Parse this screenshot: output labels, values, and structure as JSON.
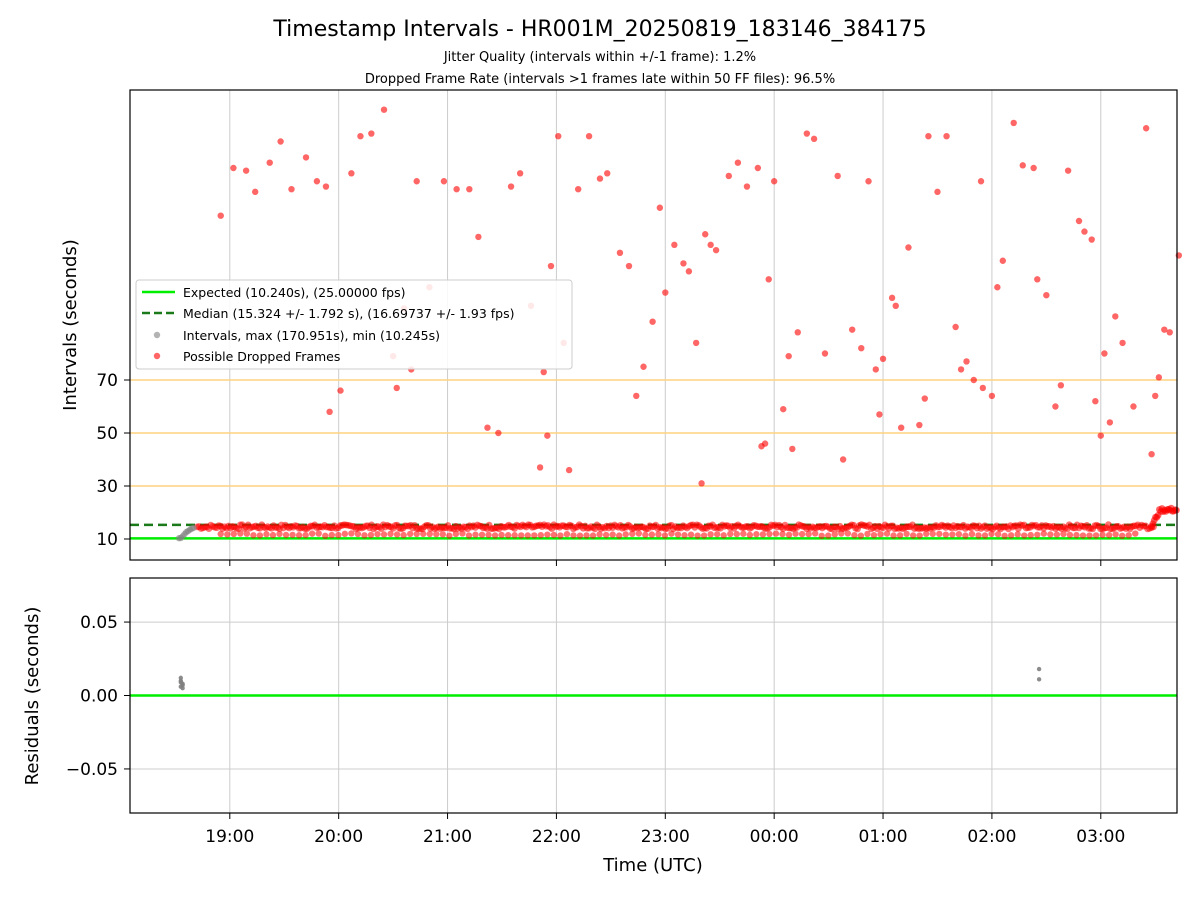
{
  "title": "Timestamp Intervals - HR001M_20250819_183146_384175",
  "subtitle1": "Jitter Quality (intervals within +/-1 frame): 1.2%",
  "subtitle2": "Dropped Frame Rate (intervals >1 frames late within 50 FF files): 96.5%",
  "colors": {
    "expected": "#00ee00",
    "median": "#1a7a1a",
    "intervals": "#808080",
    "dropped": "#ff0000",
    "threshold": "#ffd27f",
    "grid": "#cccccc"
  },
  "chart_data": [
    {
      "type": "scatter",
      "ylabel": "Intervals (seconds)",
      "xlim": [
        "18:05",
        "03:42"
      ],
      "y_ticks": [
        10,
        30,
        50,
        70
      ],
      "grid": true,
      "legend_position": "center-left",
      "expected_interval": 10.24,
      "median_interval": 15.324,
      "threshold_lines": [
        30,
        50,
        70
      ],
      "legend": [
        "Expected (10.240s), (25.00000 fps)",
        "Median (15.324 +/- 1.792 s), (16.69737 +/- 1.93 fps)",
        "Intervals, max (170.951s), min (10.245s)",
        "Possible Dropped Frames"
      ],
      "series": [
        {
          "name": "Intervals",
          "points": [
            [
              "18:32",
              10.3
            ],
            [
              "18:33",
              10.4
            ],
            [
              "18:34",
              11.0
            ],
            [
              "18:35",
              11.8
            ],
            [
              "18:36",
              12.6
            ],
            [
              "18:37",
              13.0
            ],
            [
              "18:38",
              13.5
            ],
            [
              "18:39",
              13.9
            ],
            [
              "18:40",
              14.2
            ]
          ]
        },
        {
          "name": "Possible Dropped Frames",
          "points": [
            [
              "18:55",
              132
            ],
            [
              "19:02",
              150
            ],
            [
              "19:09",
              149
            ],
            [
              "19:14",
              141
            ],
            [
              "19:22",
              152
            ],
            [
              "19:28",
              160
            ],
            [
              "19:34",
              142
            ],
            [
              "19:42",
              154
            ],
            [
              "19:48",
              145
            ],
            [
              "19:53",
              143
            ],
            [
              "19:55",
              58
            ],
            [
              "20:01",
              66
            ],
            [
              "20:07",
              148
            ],
            [
              "20:12",
              162
            ],
            [
              "20:18",
              163
            ],
            [
              "20:25",
              172
            ],
            [
              "20:30",
              79
            ],
            [
              "20:32",
              67
            ],
            [
              "20:36",
              97
            ],
            [
              "20:40",
              74
            ],
            [
              "20:43",
              145
            ],
            [
              "20:50",
              105
            ],
            [
              "20:58",
              145
            ],
            [
              "21:05",
              142
            ],
            [
              "21:12",
              142
            ],
            [
              "21:17",
              124
            ],
            [
              "21:22",
              52
            ],
            [
              "21:28",
              50
            ],
            [
              "21:35",
              143
            ],
            [
              "21:40",
              148
            ],
            [
              "21:46",
              98
            ],
            [
              "21:51",
              37
            ],
            [
              "21:55",
              49
            ],
            [
              "21:53",
              73
            ],
            [
              "21:57",
              113
            ],
            [
              "22:01",
              162
            ],
            [
              "22:04",
              84
            ],
            [
              "22:07",
              36
            ],
            [
              "22:12",
              142
            ],
            [
              "22:18",
              162
            ],
            [
              "22:24",
              146
            ],
            [
              "22:28",
              148
            ],
            [
              "22:35",
              118
            ],
            [
              "22:40",
              113
            ],
            [
              "22:44",
              64
            ],
            [
              "22:48",
              75
            ],
            [
              "22:53",
              92
            ],
            [
              "22:57",
              135
            ],
            [
              "23:00",
              103
            ],
            [
              "23:05",
              121
            ],
            [
              "23:10",
              114
            ],
            [
              "23:13",
              111
            ],
            [
              "23:17",
              84
            ],
            [
              "23:20",
              31
            ],
            [
              "23:22",
              125
            ],
            [
              "23:25",
              121
            ],
            [
              "23:28",
              119
            ],
            [
              "23:35",
              147
            ],
            [
              "23:40",
              152
            ],
            [
              "23:45",
              143
            ],
            [
              "23:53",
              45
            ],
            [
              "23:55",
              46
            ],
            [
              "23:51",
              150
            ],
            [
              "23:57",
              108
            ],
            [
              "00:00",
              145
            ],
            [
              "00:05",
              59
            ],
            [
              "00:08",
              79
            ],
            [
              "00:10",
              44
            ],
            [
              "00:13",
              88
            ],
            [
              "00:18",
              163
            ],
            [
              "00:22",
              161
            ],
            [
              "00:28",
              80
            ],
            [
              "00:35",
              147
            ],
            [
              "00:38",
              40
            ],
            [
              "00:43",
              89
            ],
            [
              "00:48",
              82
            ],
            [
              "00:52",
              145
            ],
            [
              "00:56",
              74
            ],
            [
              "00:58",
              57
            ],
            [
              "01:00",
              78
            ],
            [
              "01:05",
              101
            ],
            [
              "01:07",
              98
            ],
            [
              "01:10",
              52
            ],
            [
              "01:14",
              120
            ],
            [
              "01:20",
              53
            ],
            [
              "01:23",
              63
            ],
            [
              "01:25",
              162
            ],
            [
              "01:30",
              141
            ],
            [
              "01:35",
              162
            ],
            [
              "01:40",
              90
            ],
            [
              "01:43",
              74
            ],
            [
              "01:46",
              77
            ],
            [
              "01:50",
              70
            ],
            [
              "01:54",
              145
            ],
            [
              "01:55",
              67
            ],
            [
              "02:00",
              64
            ],
            [
              "02:03",
              105
            ],
            [
              "02:06",
              115
            ],
            [
              "02:12",
              167
            ],
            [
              "02:17",
              151
            ],
            [
              "02:23",
              150
            ],
            [
              "02:25",
              108
            ],
            [
              "02:30",
              102
            ],
            [
              "02:35",
              60
            ],
            [
              "02:38",
              68
            ],
            [
              "02:42",
              149
            ],
            [
              "02:48",
              130
            ],
            [
              "02:51",
              126
            ],
            [
              "02:55",
              123
            ],
            [
              "02:57",
              62
            ],
            [
              "03:00",
              49
            ],
            [
              "03:02",
              80
            ],
            [
              "03:05",
              54
            ],
            [
              "03:08",
              94
            ],
            [
              "03:12",
              84
            ],
            [
              "03:18",
              60
            ],
            [
              "03:25",
              165
            ],
            [
              "03:28",
              42
            ],
            [
              "03:30",
              64
            ],
            [
              "03:32",
              71
            ],
            [
              "03:35",
              89
            ],
            [
              "03:38",
              88
            ],
            [
              "03:43",
              117
            ]
          ]
        }
      ]
    },
    {
      "type": "scatter",
      "xlabel": "Time (UTC)",
      "ylabel": "Residuals (seconds)",
      "xlim": [
        "18:05",
        "03:42"
      ],
      "ylim": [
        -0.08,
        0.08
      ],
      "x_ticks": [
        "19:00",
        "20:00",
        "21:00",
        "22:00",
        "23:00",
        "00:00",
        "01:00",
        "02:00",
        "03:00"
      ],
      "y_ticks": [
        "0.05",
        "0.00",
        "−0.05"
      ],
      "y_tick_values": [
        0.05,
        0.0,
        -0.05
      ],
      "grid": true,
      "series": [
        {
          "name": "Residuals",
          "points": [
            [
              "18:33",
              0.012
            ],
            [
              "18:33",
              0.01
            ],
            [
              "18:34",
              0.008
            ],
            [
              "18:33",
              0.006
            ],
            [
              "18:34",
              0.005
            ],
            [
              "18:33",
              0.009
            ],
            [
              "18:34",
              0.007
            ],
            [
              "02:26",
              0.018
            ],
            [
              "02:26",
              0.011
            ]
          ]
        }
      ]
    }
  ]
}
